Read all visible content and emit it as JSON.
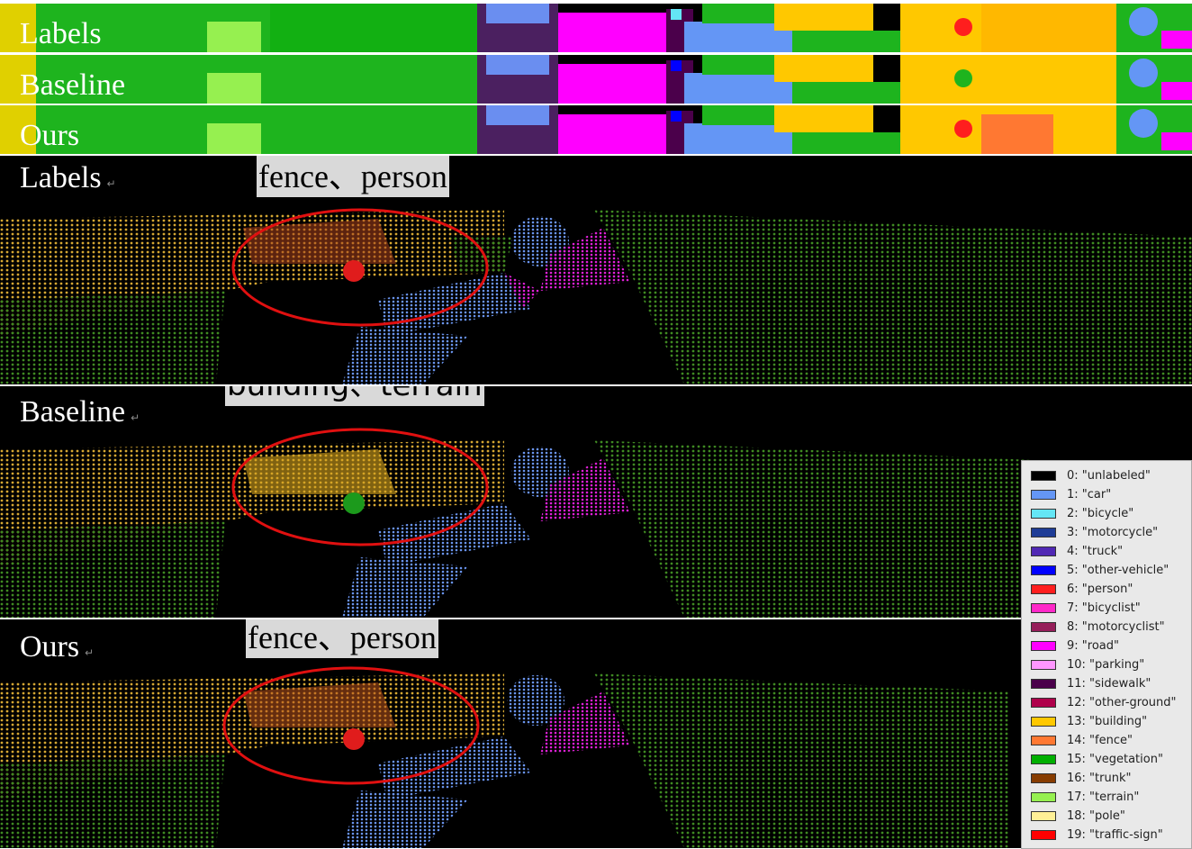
{
  "strips": [
    {
      "label": "Labels"
    },
    {
      "label": "Baseline"
    },
    {
      "label": "Ours"
    }
  ],
  "panels": [
    {
      "label": "Labels",
      "callout": "fence、person"
    },
    {
      "label": "Baseline",
      "callout": "building、terrain"
    },
    {
      "label": "Ours",
      "callout": "fence、person"
    }
  ],
  "legend": [
    {
      "label": "0: \"unlabeled\"",
      "color": "#000000"
    },
    {
      "label": "1: \"car\"",
      "color": "#6496f5"
    },
    {
      "label": "2: \"bicycle\"",
      "color": "#64e6f5"
    },
    {
      "label": "3: \"motorcycle\"",
      "color": "#1e3c96"
    },
    {
      "label": "4: \"truck\"",
      "color": "#5028b4"
    },
    {
      "label": "5: \"other-vehicle\"",
      "color": "#0000ff"
    },
    {
      "label": "6: \"person\"",
      "color": "#ff1e1e"
    },
    {
      "label": "7: \"bicyclist\"",
      "color": "#ff28c8"
    },
    {
      "label": "8: \"motorcyclist\"",
      "color": "#961e5a"
    },
    {
      "label": "9: \"road\"",
      "color": "#ff00ff"
    },
    {
      "label": "10: \"parking\"",
      "color": "#ff96ff"
    },
    {
      "label": "11: \"sidewalk\"",
      "color": "#4b004b"
    },
    {
      "label": "12: \"other-ground\"",
      "color": "#af004b"
    },
    {
      "label": "13: \"building\"",
      "color": "#ffc800"
    },
    {
      "label": "14: \"fence\"",
      "color": "#ff7832"
    },
    {
      "label": "15: \"vegetation\"",
      "color": "#00af00"
    },
    {
      "label": "16: \"trunk\"",
      "color": "#873c00"
    },
    {
      "label": "17: \"terrain\"",
      "color": "#96f050"
    },
    {
      "label": "18: \"pole\"",
      "color": "#fff096"
    },
    {
      "label": "19: \"traffic-sign\"",
      "color": "#ff0000"
    }
  ]
}
